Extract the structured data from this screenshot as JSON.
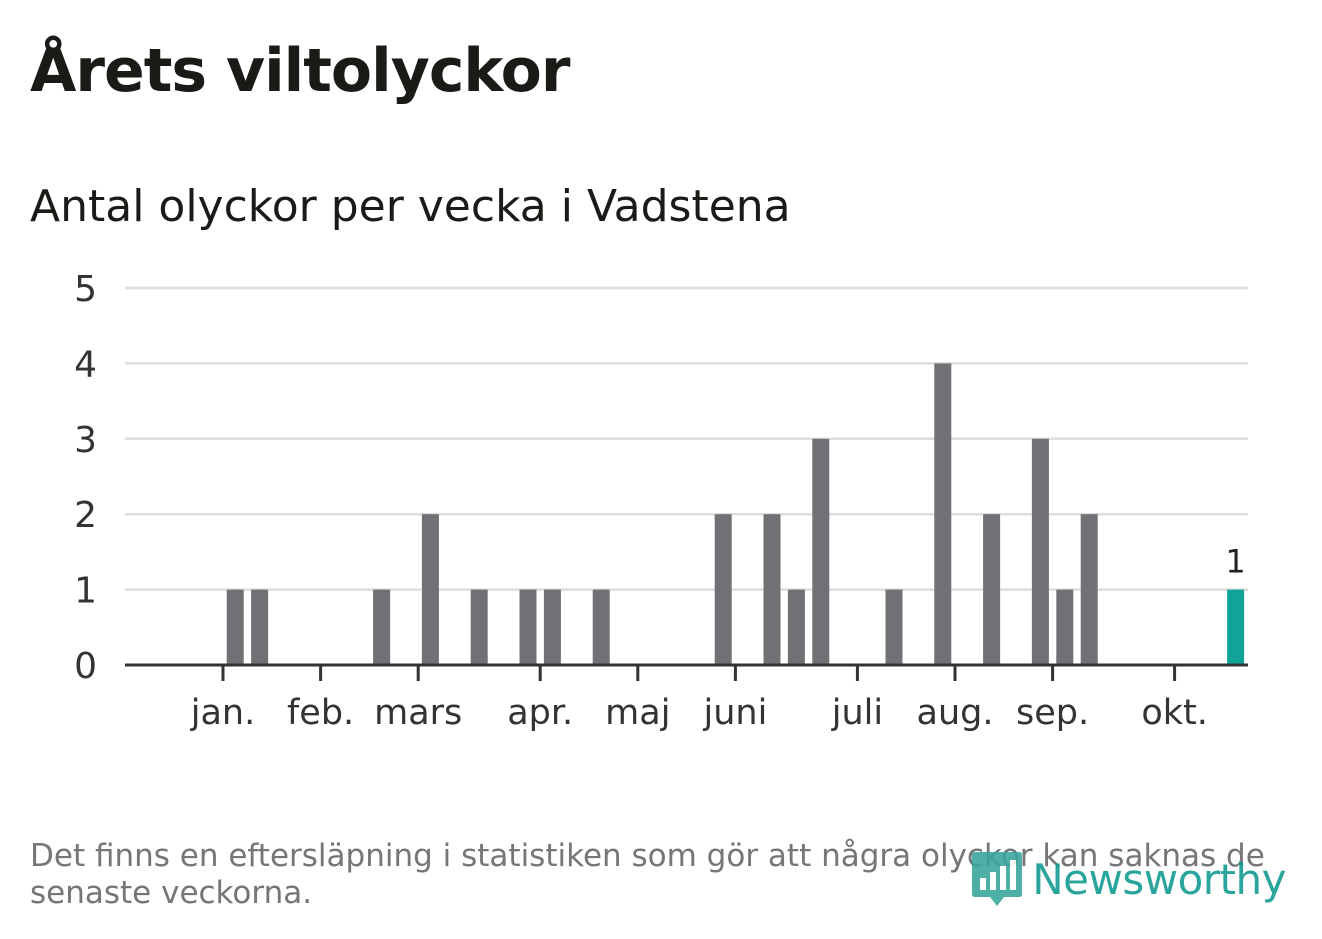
{
  "header": {
    "title": "Årets viltolyckor",
    "subtitle": "Antal olyckor per vecka i Vadstena"
  },
  "footer": {
    "note": "Det finns en eftersläpning i statistiken som gör att några olyckor kan saknas de senaste veckorna.",
    "brand": "Newsworthy",
    "brand_icon": "newsworthy-logo-icon"
  },
  "colors": {
    "bar": "#717074",
    "highlight": "#11a398",
    "grid": "#dedede",
    "axis": "#333333",
    "brand": "#129c91"
  },
  "chart_data": {
    "type": "bar",
    "title": "Antal olyckor per vecka i Vadstena",
    "xlabel": "",
    "ylabel": "",
    "x": [
      1,
      2,
      3,
      4,
      5,
      6,
      7,
      8,
      9,
      10,
      11,
      12,
      13,
      14,
      15,
      16,
      17,
      18,
      19,
      20,
      21,
      22,
      23,
      24,
      25,
      26,
      27,
      28,
      29,
      30,
      31,
      32,
      33,
      34,
      35,
      36,
      37,
      38,
      39,
      40,
      41,
      42,
      43,
      44,
      45
    ],
    "values": [
      0,
      0,
      0,
      1,
      1,
      0,
      0,
      0,
      0,
      1,
      0,
      2,
      0,
      1,
      0,
      1,
      1,
      0,
      1,
      0,
      0,
      0,
      0,
      2,
      0,
      2,
      1,
      3,
      0,
      0,
      1,
      0,
      4,
      0,
      2,
      0,
      3,
      1,
      2,
      0,
      0,
      0,
      0,
      0,
      1
    ],
    "ylim": [
      0,
      5
    ],
    "yticks": [
      0,
      1,
      2,
      3,
      4,
      5
    ],
    "month_ticks": [
      {
        "label": "jan.",
        "week": 3.5
      },
      {
        "label": "feb.",
        "week": 7.5
      },
      {
        "label": "mars",
        "week": 11.5
      },
      {
        "label": "apr.",
        "week": 16.5
      },
      {
        "label": "maj",
        "week": 20.5
      },
      {
        "label": "juni",
        "week": 24.5
      },
      {
        "label": "juli",
        "week": 29.5
      },
      {
        "label": "aug.",
        "week": 33.5
      },
      {
        "label": "sep.",
        "week": 37.5
      },
      {
        "label": "okt.",
        "week": 42.5
      }
    ],
    "highlight_index": 44,
    "highlight_label": "1",
    "grid": true,
    "legend": "none"
  }
}
